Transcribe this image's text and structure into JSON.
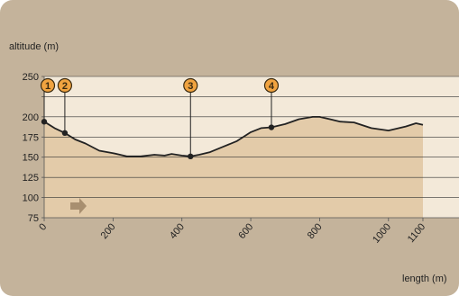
{
  "chart_data": {
    "type": "area",
    "ylabel": "altitude (m)",
    "xlabel": "length (m)",
    "y_ticks": [
      75,
      100,
      125,
      150,
      175,
      200,
      225,
      250
    ],
    "y_tick_labels": [
      "75",
      "100",
      "125",
      "150",
      "175",
      "200",
      "",
      "250"
    ],
    "ylim": [
      75,
      250
    ],
    "x_ticks": [
      0,
      200,
      400,
      600,
      800,
      1000,
      1100
    ],
    "x_tick_labels": [
      "0",
      "200",
      "400",
      "600",
      "800",
      "1000",
      "1100"
    ],
    "xlim": [
      0,
      1100
    ],
    "series": [
      {
        "x": [
          0,
          30,
          60,
          90,
          120,
          160,
          200,
          240,
          280,
          320,
          350,
          370,
          400,
          425,
          450,
          480,
          520,
          560,
          600,
          630,
          660,
          700,
          740,
          780,
          800,
          830,
          860,
          900,
          950,
          1000,
          1050,
          1080,
          1100
        ],
        "y": [
          194,
          186,
          180,
          172,
          167,
          158,
          155,
          151,
          151,
          153,
          152,
          154,
          152,
          151,
          153,
          156,
          163,
          170,
          181,
          186,
          187,
          191,
          197,
          200,
          200,
          197,
          194,
          193,
          186,
          183,
          188,
          192,
          190
        ]
      }
    ],
    "markers": [
      {
        "label": "1",
        "x": 0,
        "y": 194
      },
      {
        "label": "2",
        "x": 60,
        "y": 180
      },
      {
        "label": "3",
        "x": 425,
        "y": 151
      },
      {
        "label": "4",
        "x": 660,
        "y": 187
      }
    ],
    "grid": true
  },
  "colors": {
    "frame": "#c4b39b",
    "plot_bg": "#f3e9d9",
    "area_fill": "#e3cba9",
    "line": "#222222",
    "marker_fill": "#f0a340",
    "arrow": "#a88f70"
  },
  "icons": {
    "direction_arrow": "right-arrow-icon"
  }
}
